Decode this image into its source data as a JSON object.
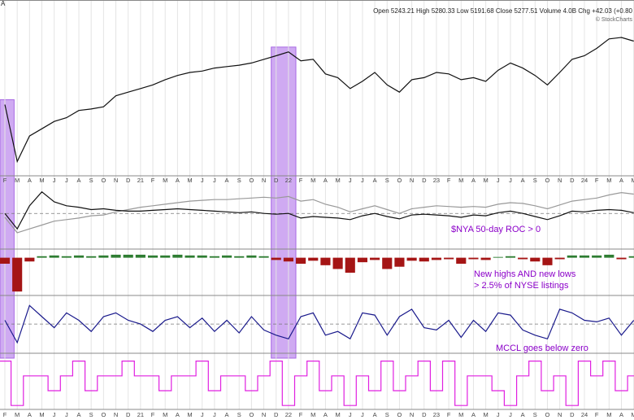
{
  "header": {
    "fragment": "A",
    "quote": "Open 5243.21  High 5280.33  Low 5191.68  Close 5277.51  Volume 4.0B  Chg +42.03 (+0.80",
    "source": "© StockCharts"
  },
  "annotations": [
    "$NYA 50-day ROC > 0",
    "New highs AND new lows",
    "> 2.5% of NYSE listings",
    "MCCL goes below zero"
  ],
  "highlights": [
    {
      "from": -0.4,
      "to": 0.75,
      "color": "#c79cf0"
    },
    {
      "from": 21.6,
      "to": 23.6,
      "color": "#c79cf0"
    }
  ],
  "chart_data": [
    {
      "type": "line",
      "categories": [
        "F",
        "M",
        "A",
        "M",
        "J",
        "J",
        "A",
        "S",
        "O",
        "N",
        "D",
        "21",
        "F",
        "M",
        "A",
        "M",
        "J",
        "J",
        "A",
        "S",
        "O",
        "N",
        "D",
        "22",
        "F",
        "M",
        "A",
        "M",
        "J",
        "J",
        "A",
        "S",
        "O",
        "N",
        "D",
        "23",
        "F",
        "M",
        "A",
        "M",
        "J",
        "J",
        "A",
        "S",
        "O",
        "N",
        "D",
        "24",
        "F",
        "M",
        "A",
        "M"
      ],
      "ylim": [
        9000,
        18500
      ],
      "grid": true,
      "series": [
        {
          "color": "#111111",
          "values": [
            13310,
            9700,
            11320,
            11780,
            12240,
            12480,
            12940,
            13030,
            13170,
            13870,
            14100,
            14330,
            14560,
            14890,
            15160,
            15350,
            15440,
            15630,
            15720,
            15810,
            15950,
            16180,
            16410,
            16650,
            16090,
            16180,
            15260,
            15020,
            14330,
            14790,
            15350,
            14560,
            14100,
            14890,
            15020,
            15350,
            15260,
            14890,
            15020,
            14790,
            15490,
            15950,
            15630,
            15160,
            14560,
            15350,
            16180,
            16410,
            16880,
            17480,
            17570,
            17340
          ]
        }
      ]
    },
    {
      "type": "line",
      "ylim": [
        -43,
        34
      ],
      "zero_line": true,
      "series": [
        {
          "color": "#999999",
          "values": [
            -5,
            -25,
            -20,
            -15,
            -10,
            -8,
            -6,
            -3,
            -2,
            2,
            5,
            8,
            10,
            12,
            14,
            16,
            17,
            18,
            18,
            19,
            20,
            21,
            20,
            22,
            16,
            18,
            12,
            8,
            2,
            6,
            10,
            5,
            0,
            6,
            8,
            10,
            9,
            8,
            9,
            8,
            12,
            14,
            13,
            10,
            6,
            11,
            16,
            18,
            20,
            24,
            27,
            25
          ]
        },
        {
          "color": "#111111",
          "values": [
            0,
            -20,
            10,
            28,
            15,
            10,
            8,
            5,
            6,
            4,
            3,
            3,
            4,
            5,
            6,
            5,
            4,
            3,
            2,
            1,
            2,
            0,
            -1,
            0,
            -6,
            -4,
            -5,
            -6,
            -8,
            -3,
            0,
            -4,
            -7,
            -2,
            -1,
            -2,
            -3,
            -5,
            -2,
            -3,
            1,
            3,
            0,
            -4,
            -8,
            -3,
            3,
            2,
            4,
            5,
            4,
            1
          ]
        }
      ]
    },
    {
      "type": "bar",
      "ylim": [
        -47,
        5
      ],
      "positive_color": "#2e7d32",
      "negative_color": "#a51515",
      "values": [
        -8,
        -45,
        -5,
        2,
        3,
        2,
        3,
        2,
        3,
        4,
        4,
        4,
        3,
        3,
        4,
        3,
        3,
        2,
        3,
        2,
        3,
        2,
        -3,
        -5,
        -8,
        -4,
        -10,
        -15,
        -20,
        -6,
        -3,
        -15,
        -12,
        -4,
        -5,
        -3,
        -2,
        -8,
        -2,
        -3,
        1,
        2,
        -2,
        -5,
        -10,
        -2,
        3,
        3,
        3,
        4,
        -2,
        2
      ]
    },
    {
      "type": "line",
      "ylim": [
        -35,
        33
      ],
      "zero_line": true,
      "series": [
        {
          "color": "#1a1a8c",
          "values": [
            5,
            -25,
            25,
            10,
            -5,
            15,
            5,
            -10,
            10,
            15,
            5,
            0,
            -10,
            5,
            10,
            -5,
            8,
            -10,
            5,
            -12,
            10,
            -8,
            -15,
            -20,
            10,
            15,
            -15,
            -10,
            -20,
            15,
            12,
            -15,
            10,
            20,
            -5,
            -8,
            5,
            -18,
            5,
            -10,
            15,
            12,
            -8,
            -15,
            -20,
            20,
            15,
            5,
            3,
            8,
            -15,
            5
          ]
        }
      ]
    },
    {
      "type": "step",
      "ylim": [
        -0.1,
        3.2
      ],
      "series": [
        {
          "color": "#e020e0",
          "values": [
            3,
            0,
            2,
            2,
            1,
            2,
            3,
            1,
            2,
            2,
            3,
            2,
            2,
            1,
            2,
            2,
            3,
            1,
            2,
            2,
            1,
            2,
            3,
            0,
            2,
            3,
            1,
            2,
            0,
            2,
            1,
            3,
            1,
            2,
            3,
            1,
            3,
            0,
            2,
            2,
            1,
            0,
            2,
            3,
            1,
            2,
            0,
            3,
            2,
            3,
            1,
            2
          ]
        }
      ]
    }
  ]
}
